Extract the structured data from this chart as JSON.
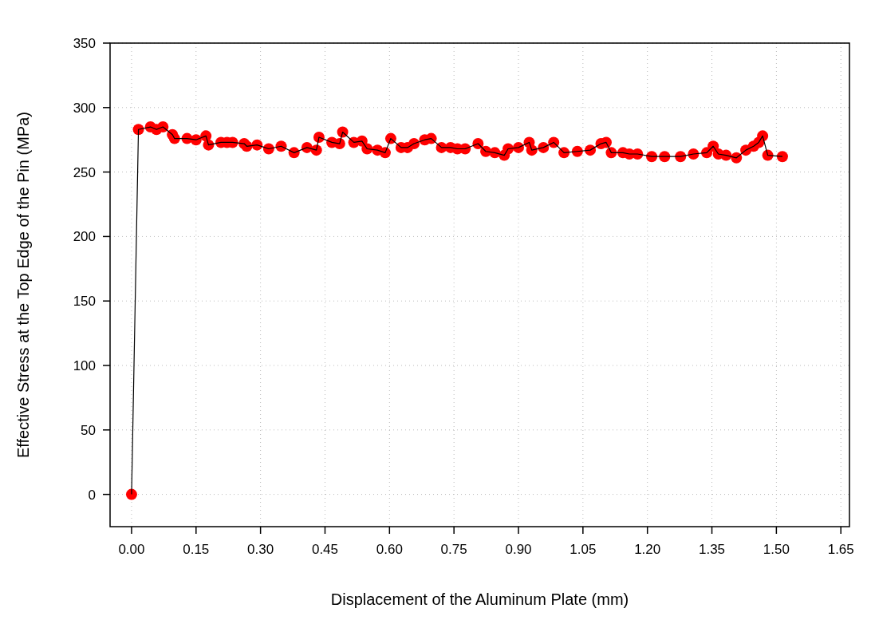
{
  "chart_data": {
    "type": "line",
    "xlabel": "Displacement of the Aluminum Plate (mm)",
    "ylabel": "Effective Stress at the Top Edge of the Pin (MPa)",
    "xlim": [
      -0.05,
      1.67
    ],
    "ylim": [
      -25,
      350
    ],
    "xticks": [
      {
        "value": 0,
        "label": "0.00"
      },
      {
        "value": 0.15,
        "label": "0.15"
      },
      {
        "value": 0.3,
        "label": "0.30"
      },
      {
        "value": 0.45,
        "label": "0.45"
      },
      {
        "value": 0.6,
        "label": "0.60"
      },
      {
        "value": 0.75,
        "label": "0.75"
      },
      {
        "value": 0.9,
        "label": "0.90"
      },
      {
        "value": 1.05,
        "label": "1.05"
      },
      {
        "value": 1.2,
        "label": "1.20"
      },
      {
        "value": 1.35,
        "label": "1.35"
      },
      {
        "value": 1.5,
        "label": "1.50"
      },
      {
        "value": 1.65,
        "label": "1.65"
      }
    ],
    "yticks": [
      0,
      50,
      100,
      150,
      200,
      250,
      300,
      350
    ],
    "grid": true,
    "marker": "circle",
    "line_style": "solid",
    "series": [
      {
        "color": "#ff0000",
        "x": [
          0,
          0.016,
          0.044,
          0.058,
          0.073,
          0.095,
          0.1,
          0.129,
          0.15,
          0.173,
          0.179,
          0.208,
          0.222,
          0.235,
          0.262,
          0.268,
          0.292,
          0.319,
          0.348,
          0.378,
          0.408,
          0.43,
          0.436,
          0.466,
          0.484,
          0.491,
          0.517,
          0.536,
          0.548,
          0.572,
          0.59,
          0.603,
          0.627,
          0.642,
          0.657,
          0.682,
          0.697,
          0.721,
          0.742,
          0.758,
          0.776,
          0.806,
          0.824,
          0.845,
          0.867,
          0.876,
          0.9,
          0.925,
          0.931,
          0.958,
          0.982,
          1.006,
          1.037,
          1.067,
          1.092,
          1.104,
          1.116,
          1.143,
          1.158,
          1.177,
          1.21,
          1.24,
          1.277,
          1.307,
          1.338,
          1.353,
          1.365,
          1.383,
          1.407,
          1.429,
          1.447,
          1.459,
          1.468,
          1.48,
          1.514
        ],
        "values": [
          0,
          283,
          285,
          283,
          285,
          279,
          276,
          276,
          275,
          278,
          271,
          273,
          273,
          273,
          272,
          270,
          271,
          268,
          270,
          265,
          269,
          267,
          277,
          273,
          272,
          281,
          273,
          274,
          268,
          267,
          265,
          276,
          269,
          269,
          272,
          275,
          276,
          269,
          269,
          268,
          268,
          272,
          266,
          265,
          263,
          268,
          269,
          273,
          267,
          269,
          273,
          265,
          266,
          267,
          272,
          273,
          265,
          265,
          264,
          264,
          262,
          262,
          262,
          264,
          265,
          270,
          264,
          263,
          261,
          267,
          270,
          273,
          278,
          263,
          262
        ]
      }
    ]
  }
}
